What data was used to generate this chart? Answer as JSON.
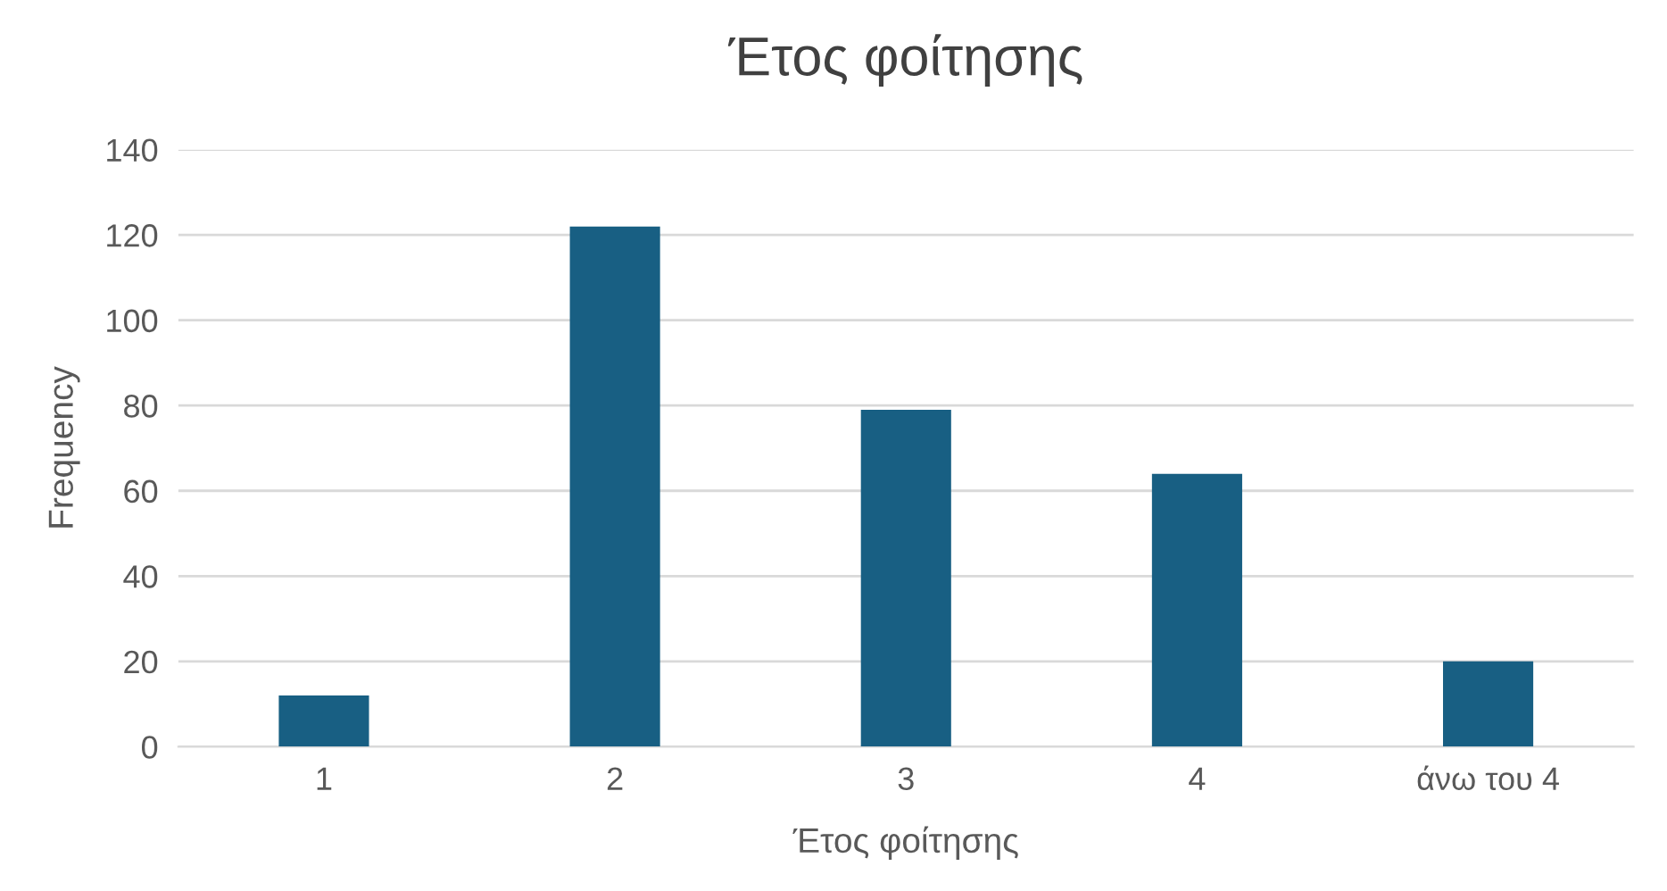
{
  "chart_data": {
    "type": "bar",
    "title": "Έτος φοίτησης",
    "xlabel": "Έτος φοίτησης",
    "ylabel": "Frequency",
    "categories": [
      "1",
      "2",
      "3",
      "4",
      "άνω του 4"
    ],
    "values": [
      12,
      122,
      79,
      64,
      20
    ],
    "color": "#185f83",
    "ylim": [
      0,
      140
    ],
    "yticks": [
      0,
      20,
      40,
      60,
      80,
      100,
      120,
      140
    ],
    "grid": "y",
    "legend": false
  }
}
